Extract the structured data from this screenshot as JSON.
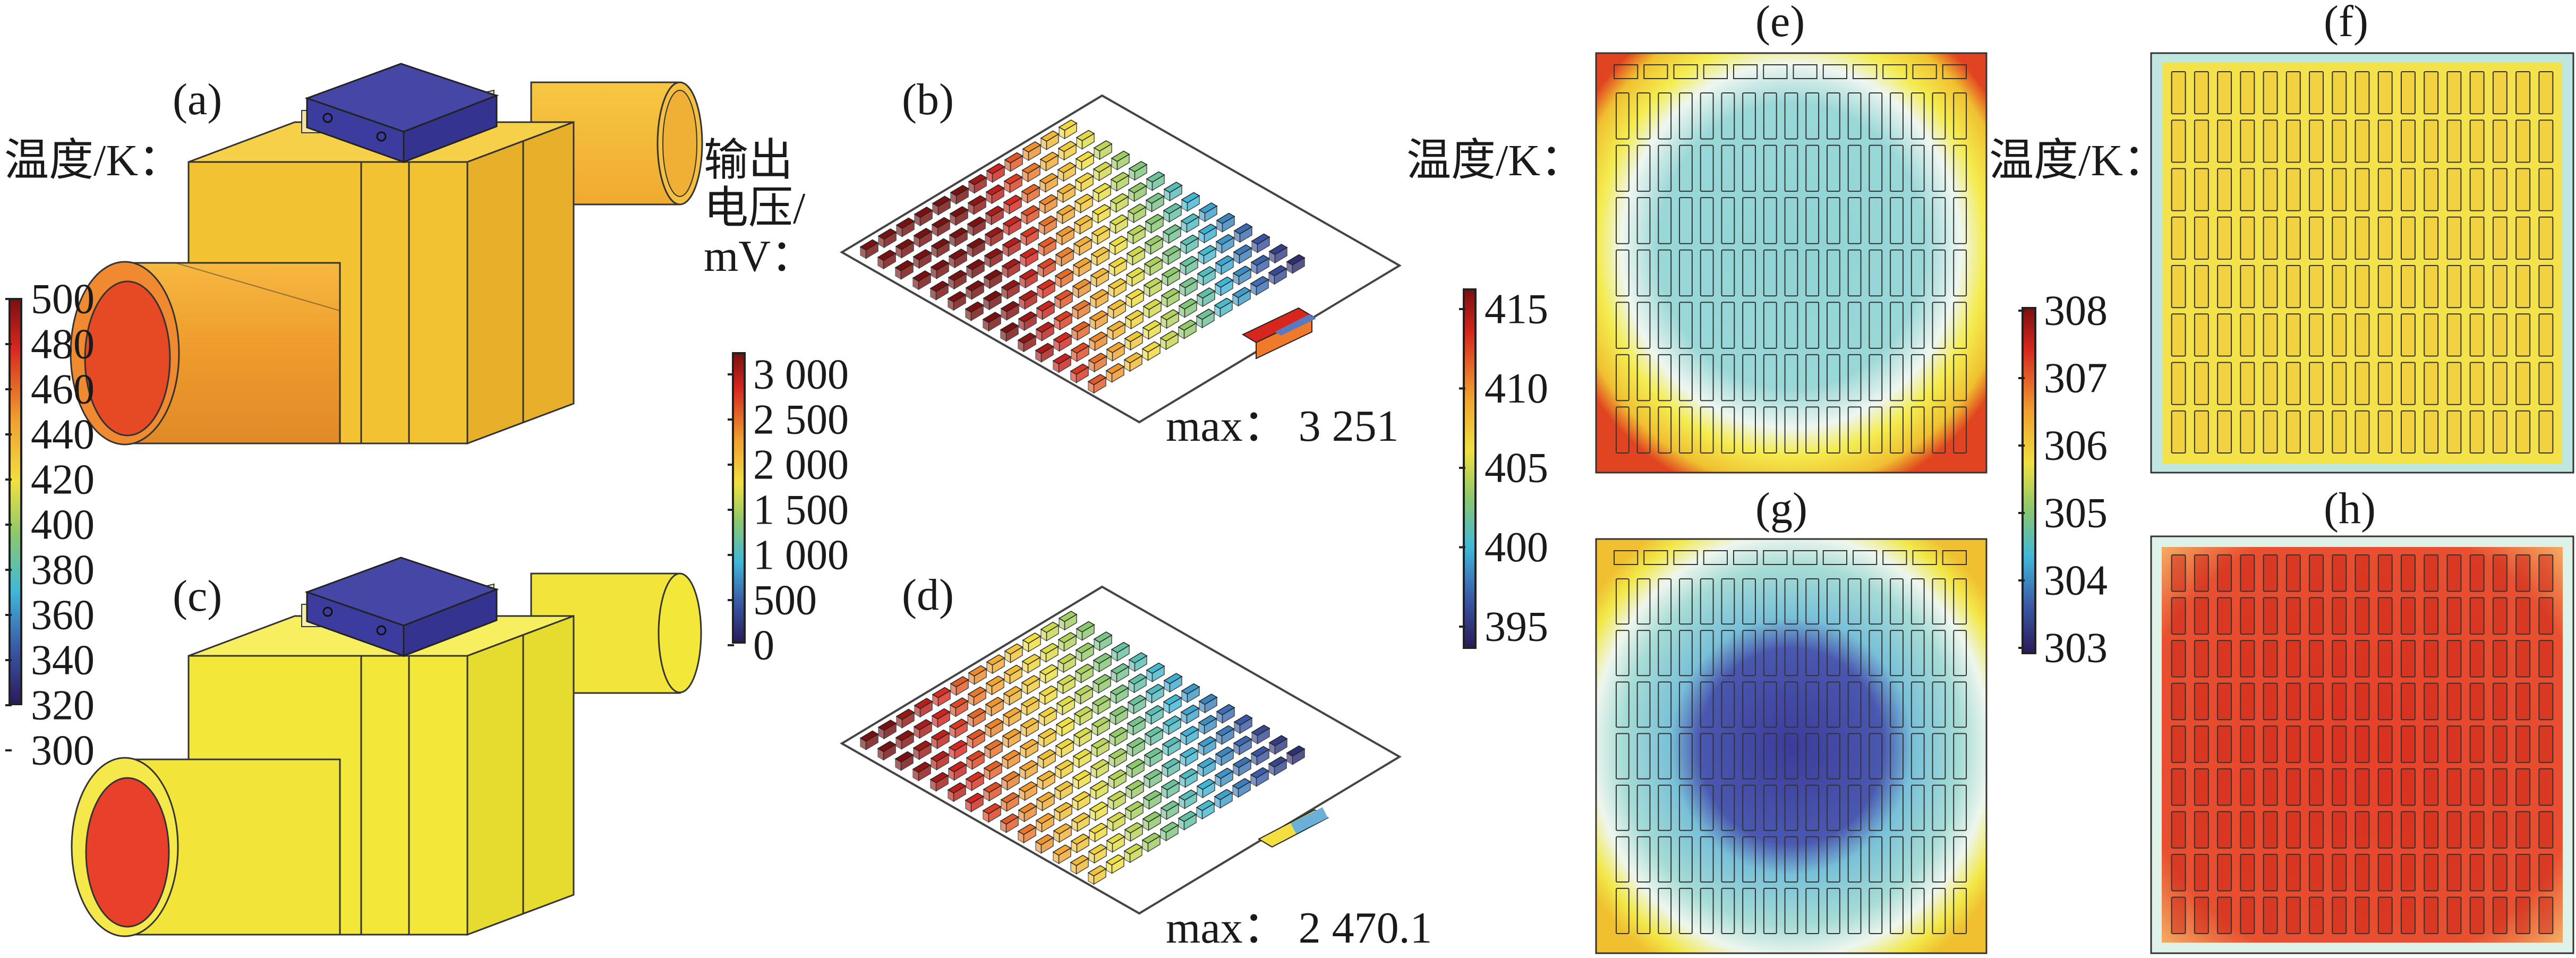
{
  "panels": {
    "a": "(a)",
    "b": "(b)",
    "c": "(c)",
    "d": "(d)",
    "e": "(e)",
    "f": "(f)",
    "g": "(g)",
    "h": "(h)"
  },
  "colorbars": {
    "temp_left": {
      "title": "温度/K：",
      "ticks": [
        "500",
        "480",
        "460",
        "440",
        "420",
        "400",
        "380",
        "360",
        "340",
        "320",
        "300"
      ]
    },
    "voltage": {
      "title_lines": [
        "输出",
        "电压/",
        "mV："
      ],
      "ticks": [
        "3 000",
        "2 500",
        "2 000",
        "1 500",
        "1 000",
        "500",
        "0"
      ]
    },
    "temp_mid": {
      "title": "温度/K：",
      "ticks": [
        "415",
        "410",
        "405",
        "400",
        "395"
      ]
    },
    "temp_right": {
      "title": "温度/K：",
      "ticks": [
        "308",
        "307",
        "306",
        "305",
        "304",
        "303"
      ]
    }
  },
  "annotations": {
    "max_b": "max：  3 251",
    "max_d": "max：  2 470.1"
  },
  "colors": {
    "housing_a": "#f2c233",
    "pipe_a": "#ee9a2c",
    "pipe_end_a": "#e64a24",
    "housing_c": "#f3e73a",
    "pipe_end_c": "#e8402a",
    "heatsink": "#3c3c9e",
    "hot_red": "#d7261e",
    "cold_blue": "#3a3a9a",
    "yellow": "#f0e040"
  }
}
